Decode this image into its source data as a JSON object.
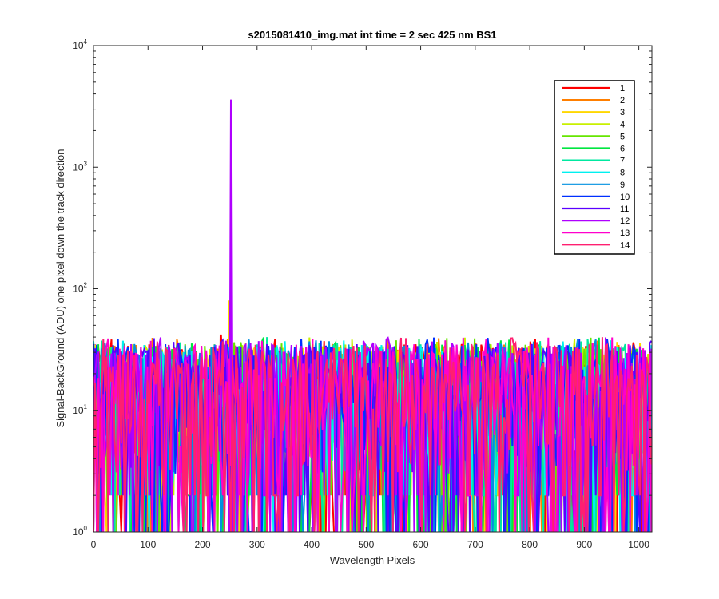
{
  "chart_data": {
    "type": "line",
    "title": "s2015081410_img.mat int time = 2 sec  425 nm BS1",
    "xlabel": "Wavelength Pixels",
    "ylabel": "Signal-BackGround (ADU) one pixel down the track direction",
    "xlim": [
      0,
      1024
    ],
    "ylim": [
      1,
      10000
    ],
    "yscale": "log",
    "grid": false,
    "legend_location": "top-right",
    "x_ticks": [
      "0",
      "100",
      "200",
      "300",
      "400",
      "500",
      "600",
      "700",
      "800",
      "900",
      "1000"
    ],
    "x_tick_values": [
      0,
      100,
      200,
      300,
      400,
      500,
      600,
      700,
      800,
      900,
      1000
    ],
    "y_ticks": [
      {
        "value": 1,
        "base": "10",
        "exp": "0"
      },
      {
        "value": 10,
        "base": "10",
        "exp": "1"
      },
      {
        "value": 100,
        "base": "10",
        "exp": "2"
      },
      {
        "value": 1000,
        "base": "10",
        "exp": "3"
      },
      {
        "value": 10000,
        "base": "10",
        "exp": "4"
      }
    ],
    "noise_range": [
      1,
      40
    ],
    "series": [
      {
        "name": "1",
        "color": "#ff0000",
        "peak": {
          "x": 233,
          "y": 42
        }
      },
      {
        "name": "2",
        "color": "#ff7f00",
        "peak": null
      },
      {
        "name": "3",
        "color": "#ffd700",
        "peak": {
          "x": 250,
          "y": 80
        }
      },
      {
        "name": "4",
        "color": "#c8f000",
        "peak": null
      },
      {
        "name": "5",
        "color": "#66e600",
        "peak": null
      },
      {
        "name": "6",
        "color": "#00e640",
        "peak": null
      },
      {
        "name": "7",
        "color": "#00e8a0",
        "peak": null
      },
      {
        "name": "8",
        "color": "#00f0f0",
        "peak": null
      },
      {
        "name": "9",
        "color": "#0090e0",
        "peak": null
      },
      {
        "name": "10",
        "color": "#0030ff",
        "peak": null
      },
      {
        "name": "11",
        "color": "#5a00ff",
        "peak": null
      },
      {
        "name": "12",
        "color": "#b000ff",
        "peak": {
          "x": 253,
          "y": 3600
        }
      },
      {
        "name": "13",
        "color": "#ff00cc",
        "peak": null
      },
      {
        "name": "14",
        "color": "#ff1f70",
        "peak": null
      }
    ]
  }
}
